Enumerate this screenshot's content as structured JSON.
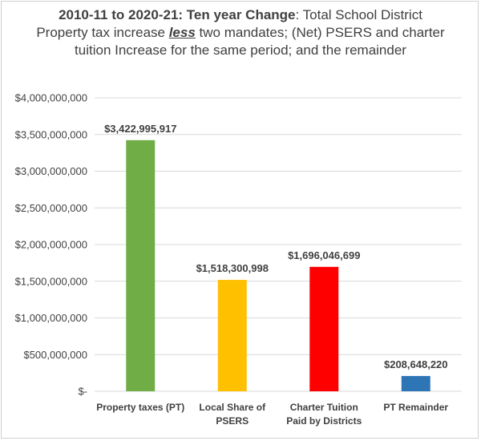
{
  "chart_data": {
    "type": "bar",
    "title": {
      "part1": "2010-11 to 2020-21:  Ten year Change",
      "part2": ": Total School District Property tax increase ",
      "emph": "less",
      "part3": "  two mandates; (Net) PSERS and charter tuition Increase for the same period;  and the remainder"
    },
    "categories": [
      [
        "Property taxes (PT)"
      ],
      [
        "Local Share of",
        "PSERS"
      ],
      [
        "Charter Tuition",
        "Paid by Districts"
      ],
      [
        "PT Remainder"
      ]
    ],
    "values": [
      3422995917,
      1518300998,
      1696046699,
      208648220
    ],
    "data_labels": [
      "$3,422,995,917",
      "$1,518,300,998",
      "$1,696,046,699",
      "$208,648,220"
    ],
    "colors": [
      "#70ad47",
      "#ffc000",
      "#ff0000",
      "#2e75b6"
    ],
    "ylim": [
      0,
      4000000000
    ],
    "yticks": [
      0,
      500000000,
      1000000000,
      1500000000,
      2000000000,
      2500000000,
      3000000000,
      3500000000,
      4000000000
    ],
    "ytick_labels": [
      "$-",
      "$500,000,000",
      "$1,000,000,000",
      "$1,500,000,000",
      "$2,000,000,000",
      "$2,500,000,000",
      "$3,000,000,000",
      "$3,500,000,000",
      "$4,000,000,000"
    ],
    "grid": true,
    "xlabel": "",
    "ylabel": ""
  }
}
